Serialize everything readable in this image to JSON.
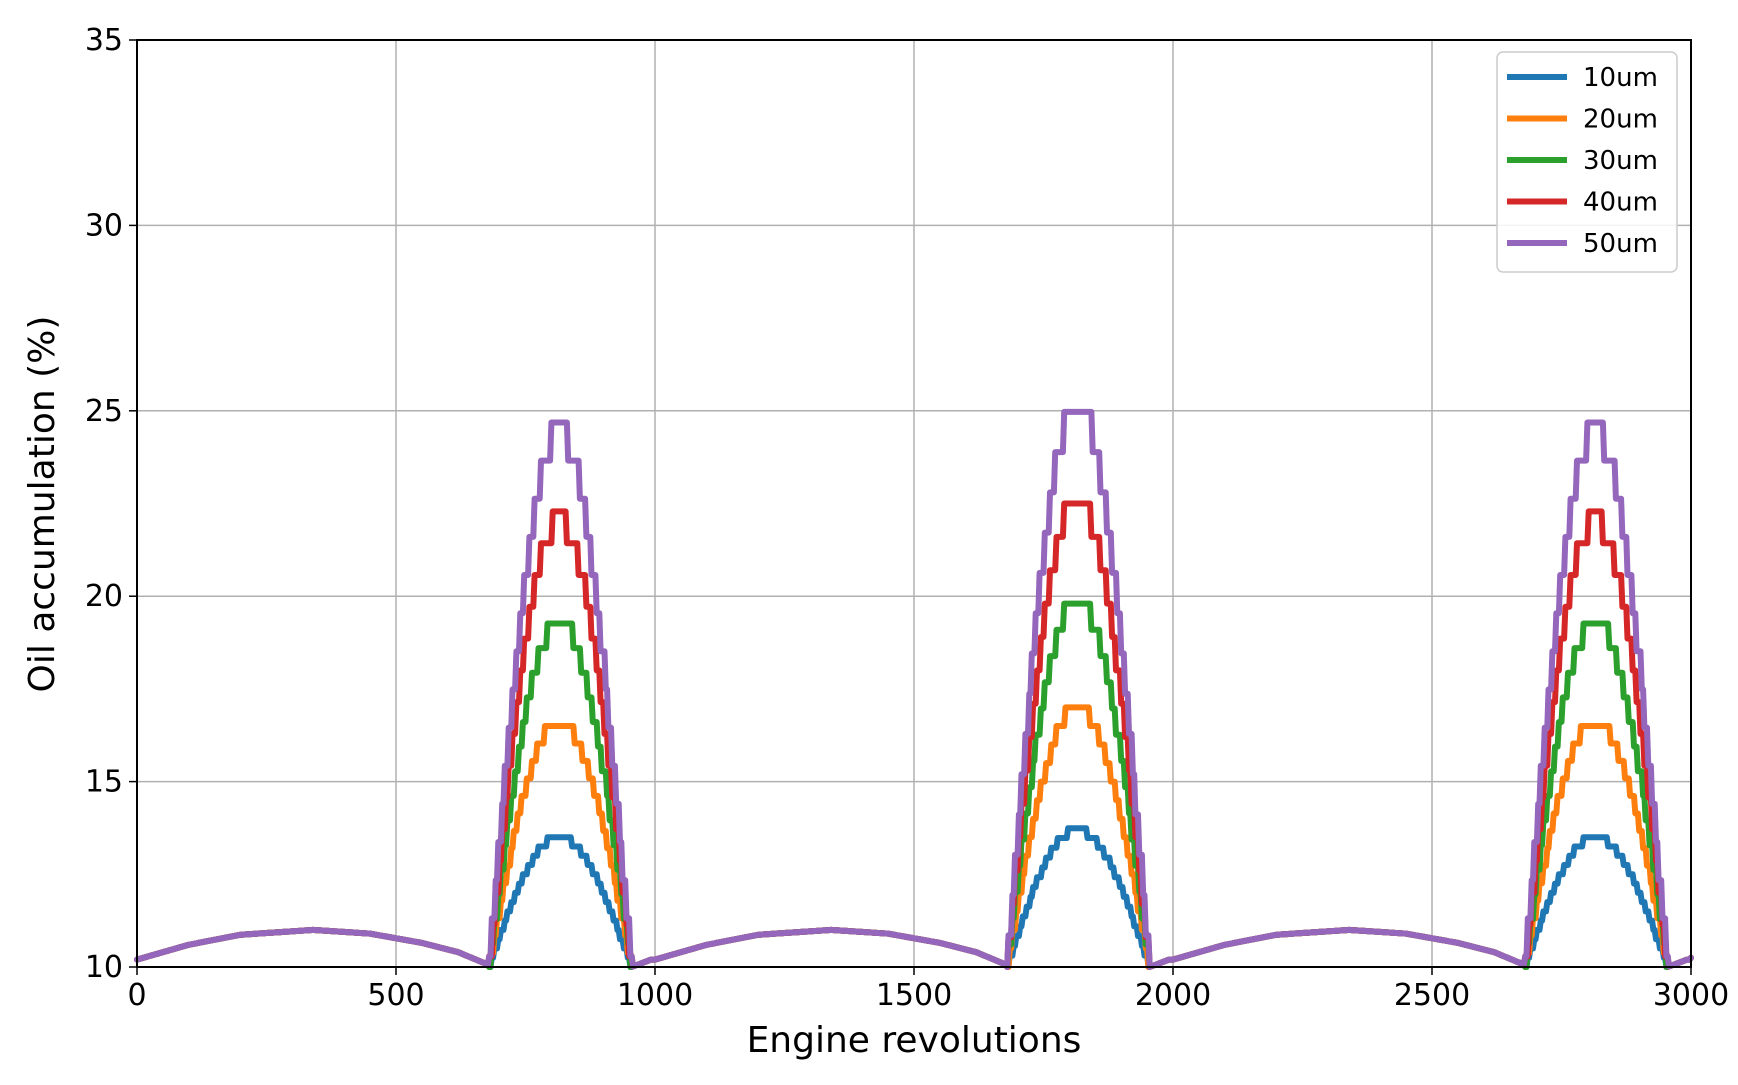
{
  "chart_data": {
    "type": "line",
    "title": "",
    "xlabel": "Engine revolutions",
    "ylabel": "Oil accumulation (%)",
    "xlim": [
      0,
      3000
    ],
    "ylim": [
      10,
      35
    ],
    "xticks": [
      0,
      500,
      1000,
      1500,
      2000,
      2500,
      3000
    ],
    "xtick_labels": [
      "0",
      "500",
      "1000",
      "1500",
      "2000",
      "2500",
      "3000"
    ],
    "yticks": [
      10,
      15,
      20,
      25,
      30,
      35
    ],
    "ytick_labels": [
      "10",
      "15",
      "20",
      "25",
      "30",
      "35"
    ],
    "grid": true,
    "legend_position": "top-right",
    "cycle_period": 1000,
    "baseline_points": [
      [
        0,
        10.2
      ],
      [
        100,
        10.6
      ],
      [
        200,
        10.87
      ],
      [
        340,
        11.0
      ],
      [
        450,
        10.9
      ],
      [
        550,
        10.65
      ],
      [
        620,
        10.4
      ],
      [
        680,
        10.05
      ]
    ],
    "burst_start": 680,
    "burst_end": 955,
    "burst_peak_x": 815,
    "x_end_value": 10.25,
    "series": [
      {
        "name": "10um",
        "color": "#1f77b4",
        "peaks": [
          13.5,
          13.7,
          13.5
        ]
      },
      {
        "name": "20um",
        "color": "#ff7f0e",
        "peaks": [
          16.6,
          17.0,
          16.6
        ]
      },
      {
        "name": "30um",
        "color": "#2ca02c",
        "peaks": [
          19.3,
          19.9,
          19.3
        ]
      },
      {
        "name": "40um",
        "color": "#d62728",
        "peaks": [
          22.0,
          22.6,
          22.0
        ]
      },
      {
        "name": "50um",
        "color": "#9467bd",
        "peaks": [
          24.4,
          25.2,
          24.4
        ]
      }
    ]
  }
}
